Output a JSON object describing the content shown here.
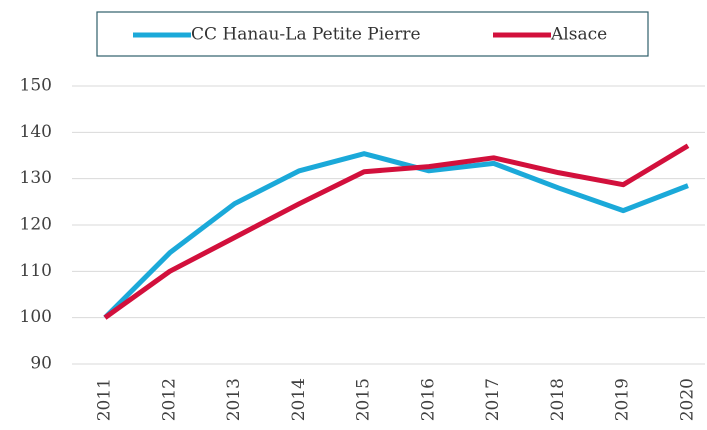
{
  "chart_data": {
    "type": "line",
    "categories": [
      "2011",
      "2012",
      "2013",
      "2014",
      "2015",
      "2016",
      "2017",
      "2018",
      "2019",
      "2020"
    ],
    "series": [
      {
        "name": "CC Hanau-La Petite Pierre",
        "color": "#1ba9d9",
        "values": [
          100,
          114,
          124.6,
          131.7,
          135.4,
          131.7,
          133.3,
          128,
          123.1,
          128.5
        ]
      },
      {
        "name": "Alsace",
        "color": "#d2103c",
        "values": [
          100,
          110,
          117.3,
          124.6,
          131.5,
          132.6,
          134.5,
          131.3,
          128.7,
          137.1
        ]
      }
    ],
    "ylim": [
      90,
      150
    ],
    "yticks": [
      90,
      100,
      110,
      120,
      130,
      140,
      150
    ],
    "grid": true,
    "legend": "top"
  }
}
